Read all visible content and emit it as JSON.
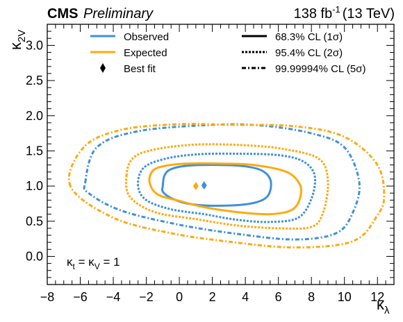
{
  "header": {
    "cms": "CMS",
    "preliminary": "Preliminary",
    "lumi_value": "138 fb",
    "lumi_exp": "-1",
    "lumi_energy": "(13 TeV)"
  },
  "colors": {
    "observed": "#3f90da",
    "expected": "#ffa90e",
    "axis": "#000000"
  },
  "legend": {
    "observed": "Observed",
    "expected": "Expected",
    "best_fit": "Best fit",
    "cl1": "68.3% CL (1σ)",
    "cl2": "95.4% CL (2σ)",
    "cl5": "99.99994% CL (5σ)"
  },
  "annotation": {
    "k1": "κ",
    "t": "t",
    "eq1": " = ",
    "k2": "κ",
    "v": "V",
    "eq2": " = 1"
  },
  "chart_data": {
    "type": "contour",
    "xlabel": "κ",
    "xlabel_sub": "λ",
    "ylabel": "κ",
    "ylabel_sub": "2V",
    "xlim": [
      -8,
      13
    ],
    "ylim": [
      -0.4,
      3.3
    ],
    "xticks": [
      -8,
      -6,
      -4,
      -2,
      0,
      2,
      4,
      6,
      8,
      10,
      12
    ],
    "yticks": [
      0.0,
      0.5,
      1.0,
      1.5,
      2.0,
      2.5,
      3.0
    ],
    "ytick_labels": [
      "0.0",
      "0.5",
      "1.0",
      "1.5",
      "2.0",
      "2.5",
      "3.0"
    ],
    "best_fit": {
      "observed": {
        "x": 1.5,
        "y": 1.01
      },
      "expected": {
        "x": 1.0,
        "y": 1.0
      }
    },
    "contours": [
      {
        "series": "observed",
        "level": "1sigma",
        "style": "solid",
        "points": [
          [
            -1.0,
            1.0
          ],
          [
            -0.9,
            1.15
          ],
          [
            -0.5,
            1.24
          ],
          [
            0.5,
            1.29
          ],
          [
            2.5,
            1.3
          ],
          [
            4.0,
            1.28
          ],
          [
            5.0,
            1.22
          ],
          [
            5.5,
            1.1
          ],
          [
            5.5,
            0.93
          ],
          [
            5.1,
            0.81
          ],
          [
            4.0,
            0.74
          ],
          [
            2.0,
            0.72
          ],
          [
            0.5,
            0.75
          ],
          [
            -0.5,
            0.83
          ],
          [
            -1.0,
            0.92
          ]
        ]
      },
      {
        "series": "expected",
        "level": "1sigma",
        "style": "solid",
        "points": [
          [
            -1.8,
            1.05
          ],
          [
            -1.6,
            1.22
          ],
          [
            -0.8,
            1.29
          ],
          [
            0.5,
            1.32
          ],
          [
            2.5,
            1.32
          ],
          [
            4.5,
            1.3
          ],
          [
            6.5,
            1.2
          ],
          [
            7.3,
            1.02
          ],
          [
            7.3,
            0.82
          ],
          [
            6.8,
            0.66
          ],
          [
            5.5,
            0.6
          ],
          [
            3.5,
            0.63
          ],
          [
            1.5,
            0.7
          ],
          [
            0.0,
            0.79
          ],
          [
            -1.3,
            0.88
          ]
        ]
      },
      {
        "series": "observed",
        "level": "2sigma",
        "style": "dotted",
        "points": [
          [
            -2.5,
            1.0
          ],
          [
            -2.2,
            1.25
          ],
          [
            -1.0,
            1.38
          ],
          [
            1.0,
            1.45
          ],
          [
            3.5,
            1.46
          ],
          [
            6.0,
            1.44
          ],
          [
            7.5,
            1.35
          ],
          [
            8.2,
            1.15
          ],
          [
            8.0,
            0.82
          ],
          [
            7.2,
            0.55
          ],
          [
            5.5,
            0.49
          ],
          [
            3.5,
            0.52
          ],
          [
            1.5,
            0.6
          ],
          [
            -0.5,
            0.67
          ],
          [
            -2.0,
            0.8
          ]
        ]
      },
      {
        "series": "expected",
        "level": "2sigma",
        "style": "dotted",
        "points": [
          [
            -3.2,
            1.15
          ],
          [
            -2.8,
            1.4
          ],
          [
            -1.5,
            1.52
          ],
          [
            1.0,
            1.59
          ],
          [
            4.0,
            1.58
          ],
          [
            6.5,
            1.52
          ],
          [
            8.5,
            1.38
          ],
          [
            9.0,
            1.05
          ],
          [
            8.7,
            0.62
          ],
          [
            8.0,
            0.42
          ],
          [
            6.0,
            0.4
          ],
          [
            3.5,
            0.44
          ],
          [
            1.0,
            0.53
          ],
          [
            -1.5,
            0.63
          ],
          [
            -3.0,
            0.85
          ]
        ]
      },
      {
        "series": "observed",
        "level": "5sigma",
        "style": "dashdot",
        "points": [
          [
            -5.7,
            1.05
          ],
          [
            -5.0,
            1.55
          ],
          [
            -2.5,
            1.78
          ],
          [
            2.0,
            1.87
          ],
          [
            5.0,
            1.86
          ],
          [
            8.0,
            1.75
          ],
          [
            10.0,
            1.55
          ],
          [
            10.9,
            1.05
          ],
          [
            10.5,
            0.62
          ],
          [
            9.5,
            0.33
          ],
          [
            7.0,
            0.24
          ],
          [
            3.5,
            0.32
          ],
          [
            0.0,
            0.45
          ],
          [
            -3.5,
            0.65
          ],
          [
            -5.5,
            0.9
          ]
        ]
      },
      {
        "series": "expected",
        "level": "5sigma",
        "style": "dashdot",
        "points": [
          [
            -6.6,
            1.0
          ],
          [
            -5.8,
            1.55
          ],
          [
            -3.5,
            1.8
          ],
          [
            0.0,
            1.88
          ],
          [
            3.0,
            1.87
          ],
          [
            7.0,
            1.85
          ],
          [
            10.0,
            1.7
          ],
          [
            12.0,
            1.3
          ],
          [
            12.4,
            0.82
          ],
          [
            11.9,
            0.55
          ],
          [
            11.0,
            0.28
          ],
          [
            9.5,
            0.16
          ],
          [
            6.5,
            0.13
          ],
          [
            3.0,
            0.21
          ],
          [
            -0.5,
            0.33
          ],
          [
            -4.0,
            0.55
          ]
        ]
      }
    ]
  }
}
